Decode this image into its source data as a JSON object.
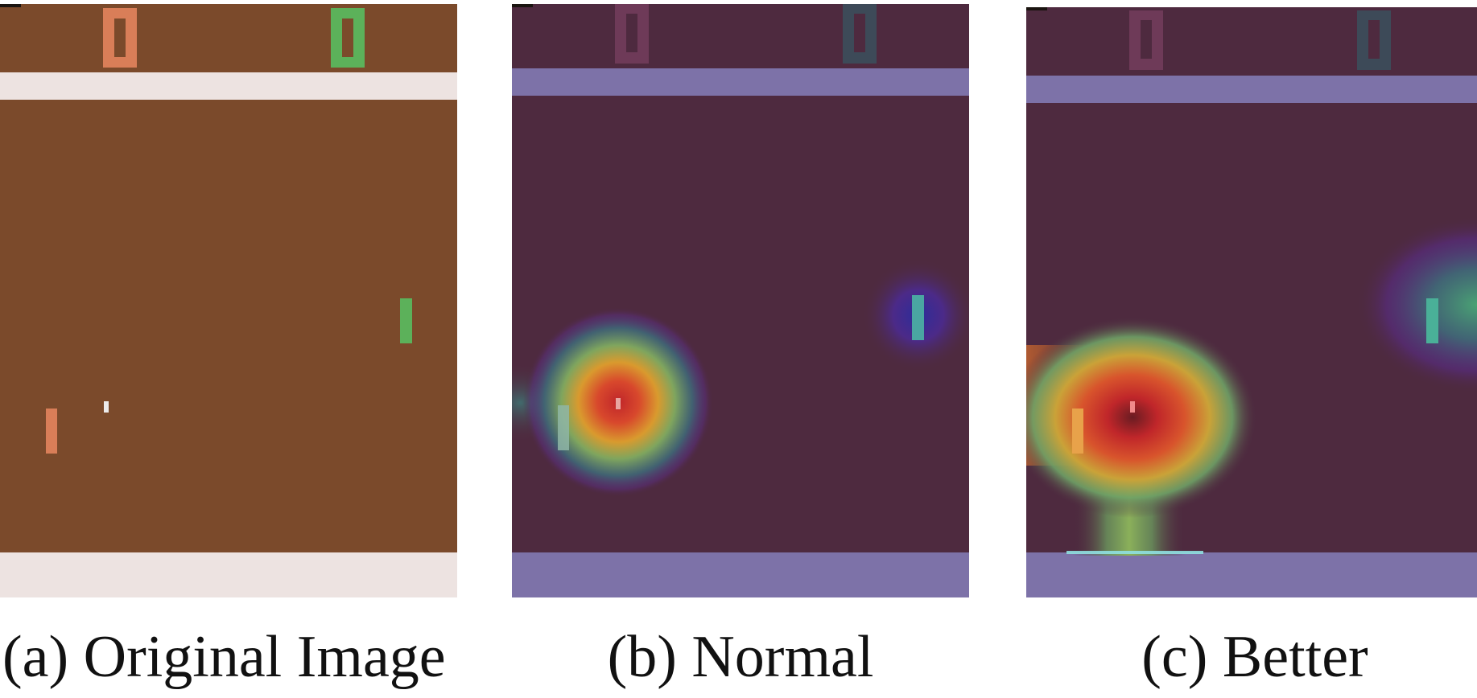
{
  "panels": [
    {
      "id": "a",
      "caption": "(a) Original Image"
    },
    {
      "id": "b",
      "caption": "(b) Normal"
    },
    {
      "id": "c",
      "caption": "(c) Better"
    }
  ],
  "colors": {
    "original_court": "#7b4a2b",
    "original_wall": "#ede3e1",
    "player_orange": "#d97e58",
    "opponent_green": "#5cb15a",
    "ball_white": "#ecebeb",
    "heatmap_base": "#4e2a3f",
    "heatmap_wall": "#7d72a8"
  },
  "icons": {
    "score_left": "score-digit-zero-icon",
    "score_right": "score-digit-zero-icon"
  }
}
